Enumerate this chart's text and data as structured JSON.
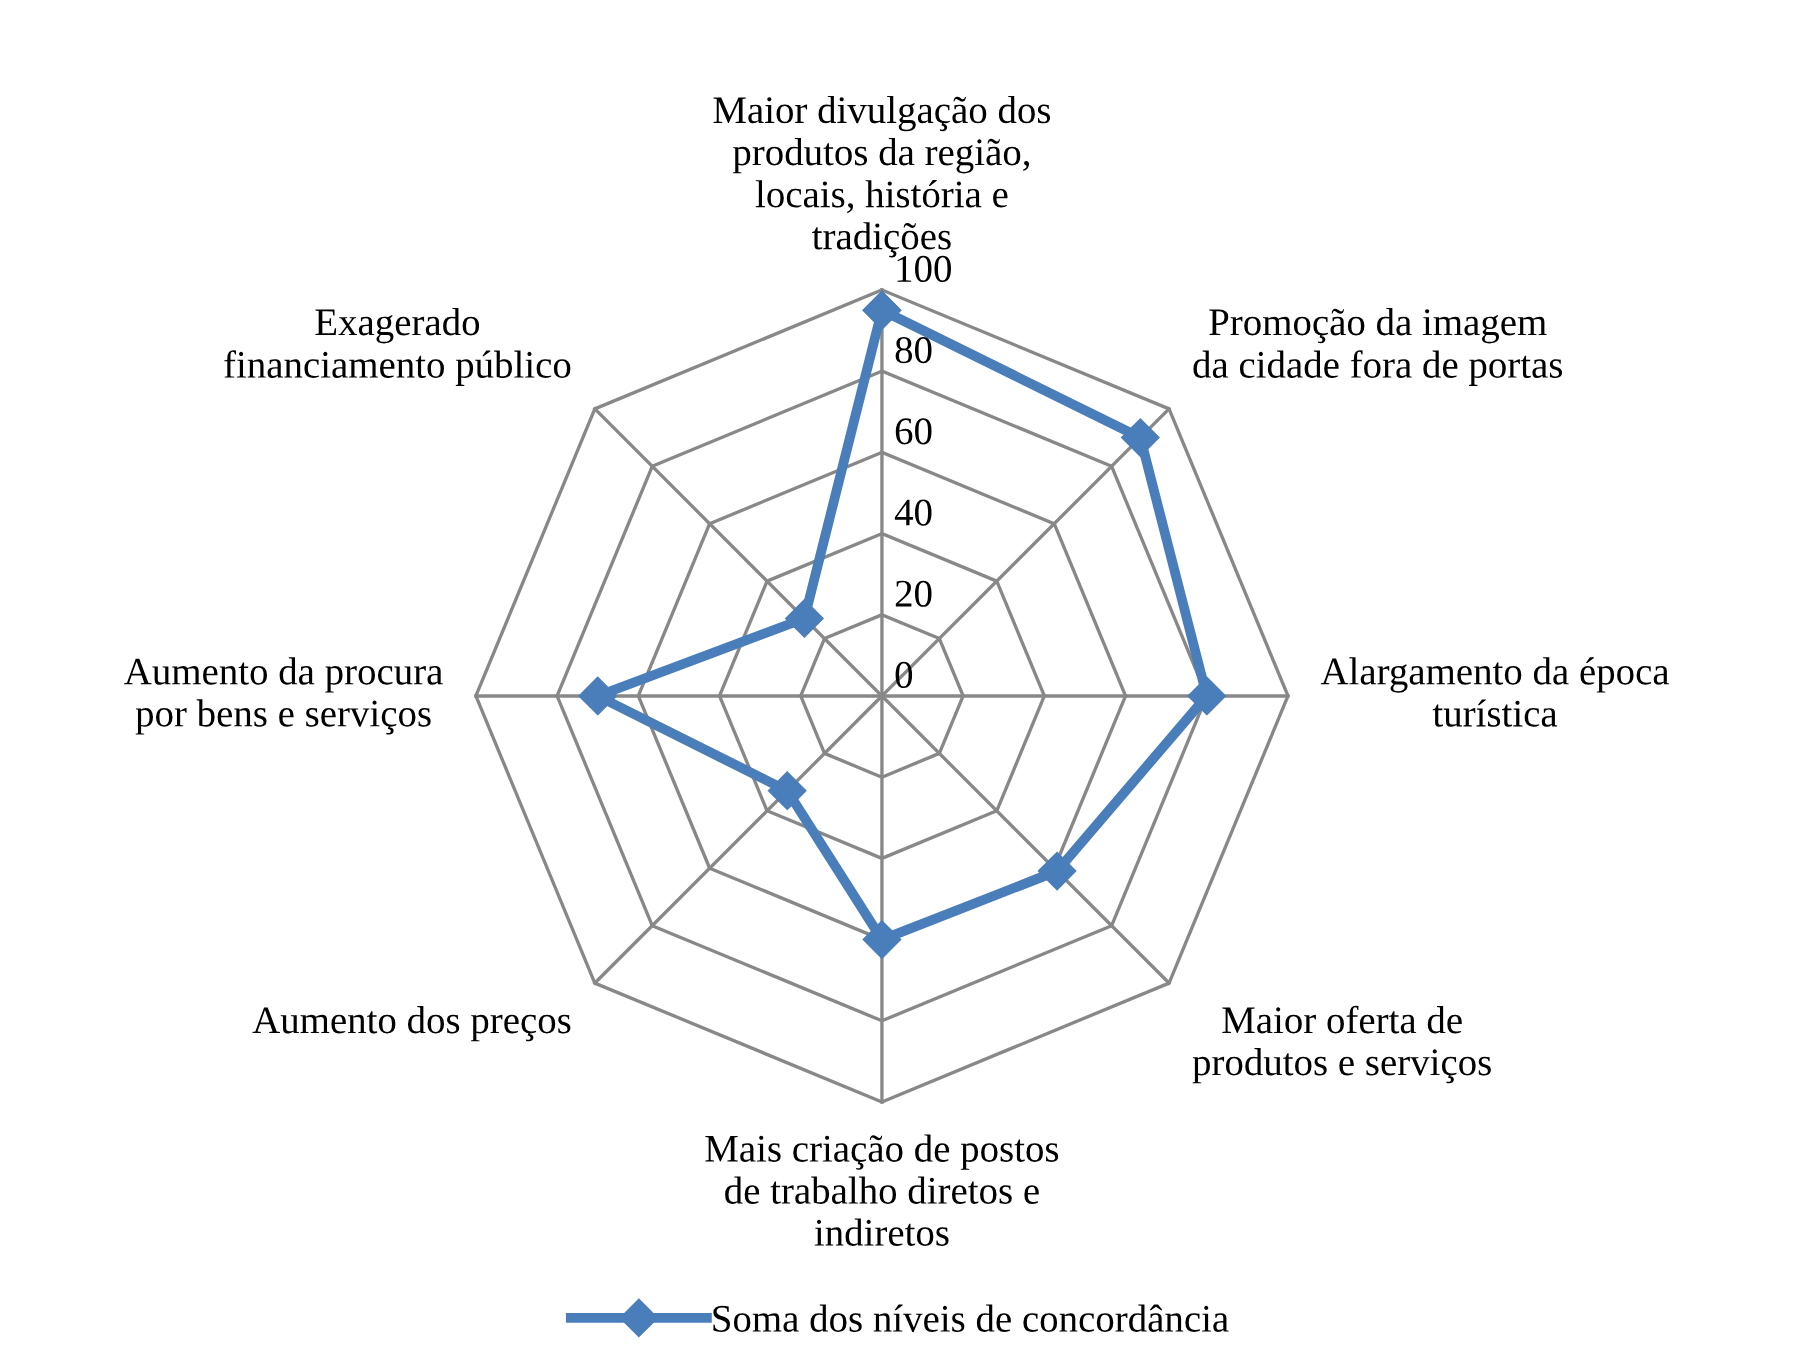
{
  "chart_data": {
    "type": "radar",
    "categories": [
      "Maior divulgação dos\nprodutos da região,\nlocais, história e\ntradições",
      "Promoção da imagem\nda cidade fora de portas",
      "Alargamento da época\nturística",
      "Maior oferta de\nprodutos e serviços",
      "Mais criação de postos\nde trabalho diretos e\nindiretos",
      "Aumento dos preços",
      "Aumento da procura\npor bens e serviços",
      "Exagerado\nfinanciamento público"
    ],
    "series": [
      {
        "name": "Soma dos níveis de concordância",
        "color": "#4a7ebb",
        "values": [
          95,
          90,
          80,
          61,
          60,
          33,
          70,
          27
        ]
      }
    ],
    "ylim": [
      0,
      100
    ],
    "yticks": [
      0,
      20,
      40,
      60,
      80,
      100
    ],
    "grid": true,
    "legend": "bottom",
    "marker": "diamond",
    "line_style": "solid"
  }
}
